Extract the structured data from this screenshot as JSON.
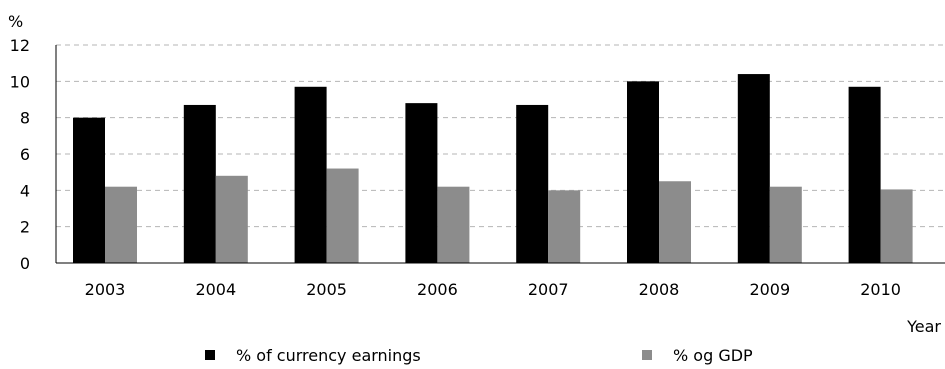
{
  "chart_data": {
    "type": "bar",
    "title": "",
    "ylabel": "%",
    "xlabel": "Year",
    "ylim": [
      0,
      12
    ],
    "yticks": [
      0,
      2,
      4,
      6,
      8,
      10,
      12
    ],
    "grid": true,
    "legend_position": "bottom",
    "categories": [
      "2003",
      "2004",
      "2005",
      "2006",
      "2007",
      "2008",
      "2009",
      "2010"
    ],
    "series": [
      {
        "name": "% of currency earnings",
        "color": "#000000",
        "values": [
          8.0,
          8.7,
          9.7,
          8.8,
          8.7,
          10.0,
          10.4,
          9.7
        ]
      },
      {
        "name": "% og GDP",
        "color": "#8c8c8c",
        "values": [
          4.2,
          4.8,
          5.2,
          4.2,
          4.0,
          4.5,
          4.2,
          4.05
        ]
      }
    ]
  }
}
